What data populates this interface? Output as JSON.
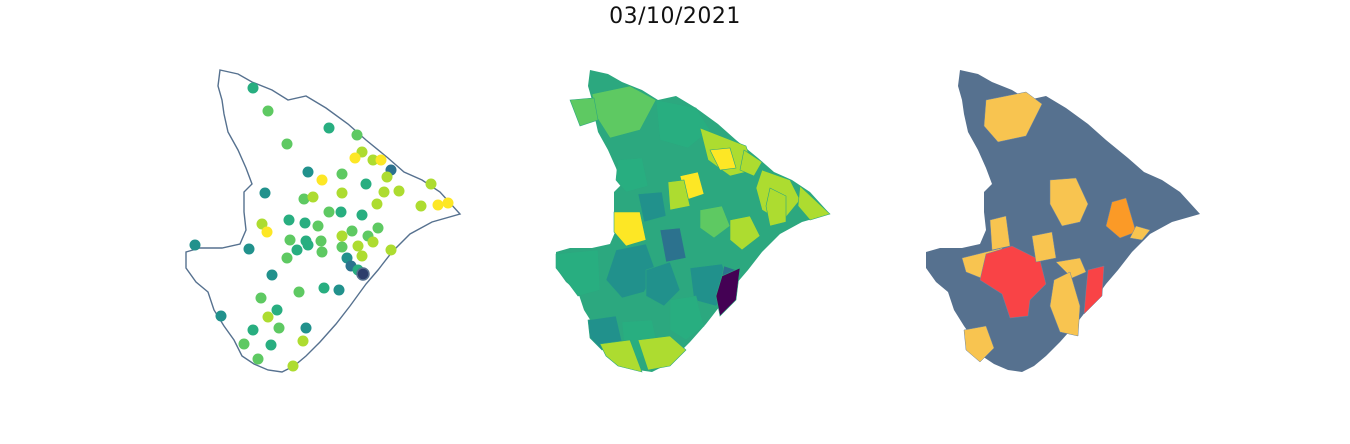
{
  "figure": {
    "title": "03/10/2021"
  },
  "panels": [
    {
      "kind": "point-map",
      "outline_color": "#56718f",
      "colormap": "viridis"
    },
    {
      "kind": "choropleth",
      "colormap": "viridis"
    },
    {
      "kind": "categorical-choropleth",
      "category_colors": {
        "low": "#56718f",
        "moderate": "#f8c450",
        "high": "#fb9a27",
        "very_high": "#f94346"
      }
    }
  ]
}
